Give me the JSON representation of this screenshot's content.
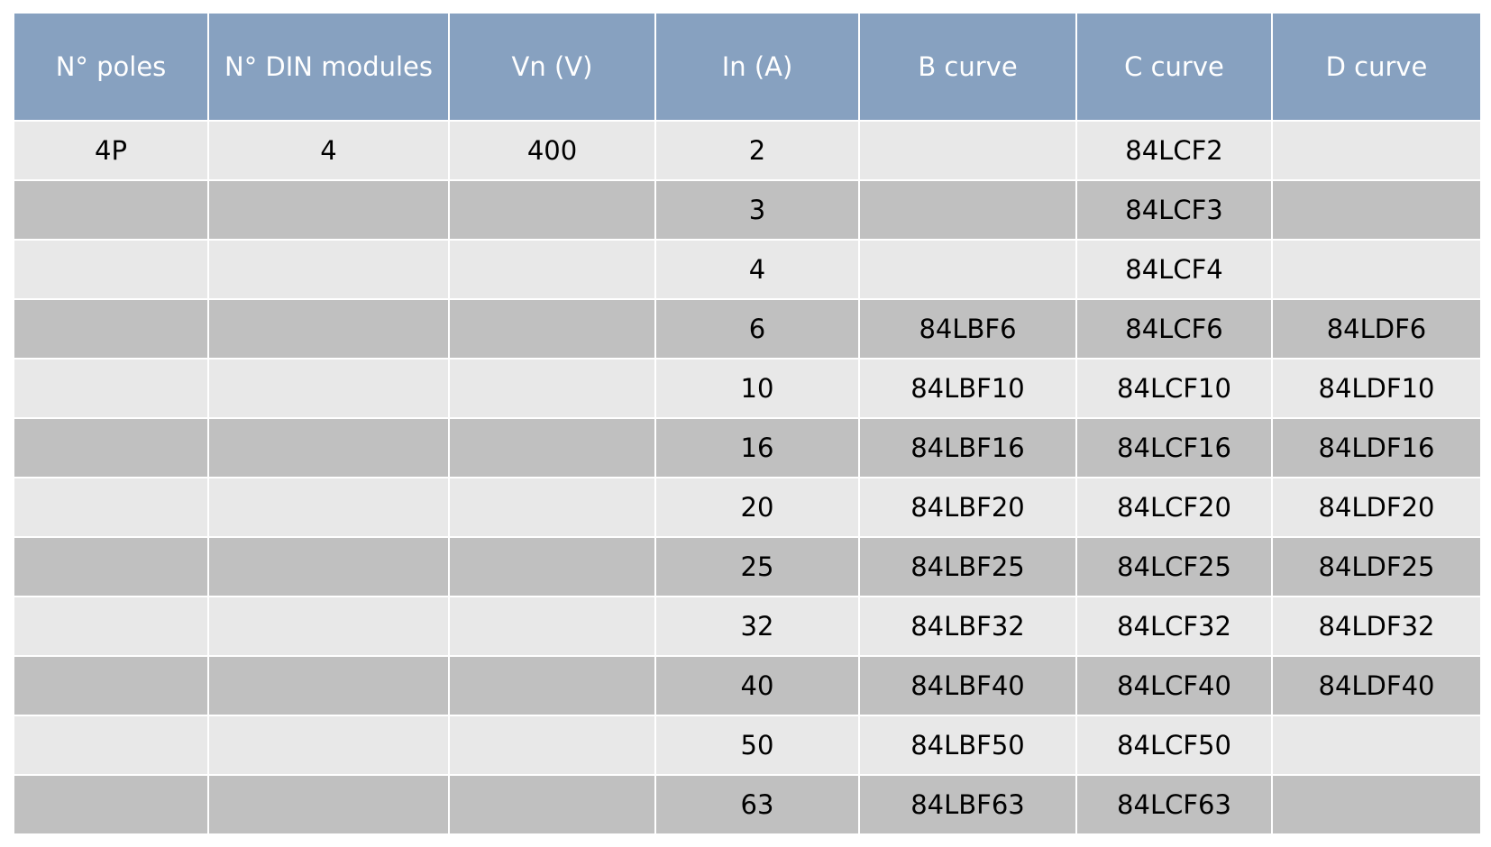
{
  "table": {
    "columns": [
      "N° poles",
      "N° DIN modules",
      "Vn (V)",
      "In (A)",
      "B curve",
      "C curve",
      "D curve"
    ],
    "rows": [
      [
        "4P",
        "4",
        "400",
        "2",
        null,
        "84LCF2",
        null
      ],
      [
        null,
        null,
        null,
        "3",
        null,
        "84LCF3",
        null
      ],
      [
        null,
        null,
        null,
        "4",
        null,
        "84LCF4",
        null
      ],
      [
        null,
        null,
        null,
        "6",
        "84LBF6",
        "84LCF6",
        "84LDF6"
      ],
      [
        null,
        null,
        null,
        "10",
        "84LBF10",
        "84LCF10",
        "84LDF10"
      ],
      [
        null,
        null,
        null,
        "16",
        "84LBF16",
        "84LCF16",
        "84LDF16"
      ],
      [
        null,
        null,
        null,
        "20",
        "84LBF20",
        "84LCF20",
        "84LDF20"
      ],
      [
        null,
        null,
        null,
        "25",
        "84LBF25",
        "84LCF25",
        "84LDF25"
      ],
      [
        null,
        null,
        null,
        "32",
        "84LBF32",
        "84LCF32",
        "84LDF32"
      ],
      [
        null,
        null,
        null,
        "40",
        "84LBF40",
        "84LCF40",
        "84LDF40"
      ],
      [
        null,
        null,
        null,
        "50",
        "84LBF50",
        "84LCF50",
        null
      ],
      [
        null,
        null,
        null,
        "63",
        "84LBF63",
        "84LCF63",
        null
      ]
    ]
  }
}
